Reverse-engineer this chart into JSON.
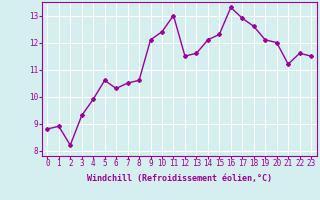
{
  "x": [
    0,
    1,
    2,
    3,
    4,
    5,
    6,
    7,
    8,
    9,
    10,
    11,
    12,
    13,
    14,
    15,
    16,
    17,
    18,
    19,
    20,
    21,
    22,
    23
  ],
  "y": [
    8.8,
    8.9,
    8.2,
    9.3,
    9.9,
    10.6,
    10.3,
    10.5,
    10.6,
    12.1,
    12.4,
    13.0,
    11.5,
    11.6,
    12.1,
    12.3,
    13.3,
    12.9,
    12.6,
    12.1,
    12.0,
    11.2,
    11.6,
    11.5
  ],
  "line_color": "#990099",
  "marker": "D",
  "marker_size": 2.0,
  "background_color": "#d5efef",
  "grid_color": "#ffffff",
  "xlabel": "Windchill (Refroidissement éolien,°C)",
  "xlabel_color": "#990099",
  "tick_color": "#990099",
  "xlim": [
    -0.5,
    23.5
  ],
  "ylim": [
    7.8,
    13.5
  ],
  "yticks": [
    8,
    9,
    10,
    11,
    12,
    13
  ],
  "xticks": [
    0,
    1,
    2,
    3,
    4,
    5,
    6,
    7,
    8,
    9,
    10,
    11,
    12,
    13,
    14,
    15,
    16,
    17,
    18,
    19,
    20,
    21,
    22,
    23
  ],
  "spine_color": "#990099",
  "line_width": 1.0,
  "tick_fontsize": 5.5,
  "xlabel_fontsize": 6.0
}
